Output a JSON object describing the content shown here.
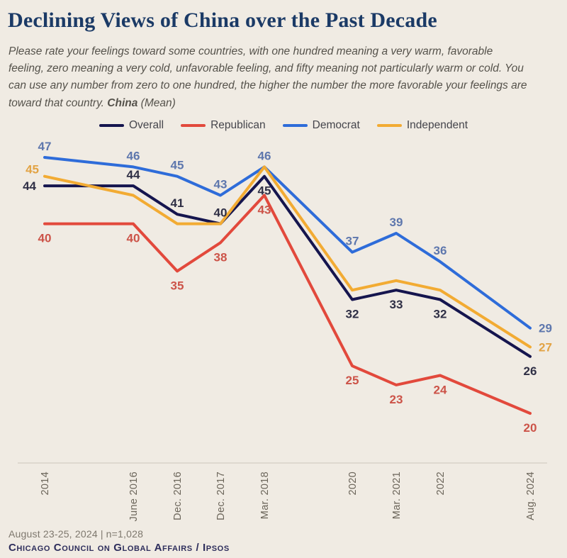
{
  "header": {
    "title": "Declining Views of China over the Past Decade",
    "subtitle_text": "Please rate your feelings toward some countries, with one hundred meaning a very warm, favorable feeling, zero meaning a very cold, unfavorable feeling, and fifty meaning not particularly warm or cold. You can use any number from zero to one hundred, the higher the number the more favorable your feelings are toward that country.",
    "subtitle_bold": "China",
    "subtitle_tail": "(Mean)"
  },
  "chart_data": {
    "type": "line",
    "title": "Declining Views of China over the Past Decade",
    "categories": [
      "2014",
      "June 2016",
      "Dec. 2016",
      "Dec. 2017",
      "Mar. 2018",
      "2020",
      "Mar. 2021",
      "2022",
      "Aug. 2024"
    ],
    "series": [
      {
        "name": "Overall",
        "color": "#15154e",
        "label_color": "#2f2f45",
        "values": [
          44,
          44,
          41,
          40,
          45,
          32,
          33,
          32,
          26
        ]
      },
      {
        "name": "Republican",
        "color": "#e2493c",
        "label_color": "#cc5348",
        "values": [
          40,
          40,
          35,
          38,
          43,
          25,
          23,
          24,
          20
        ]
      },
      {
        "name": "Democrat",
        "color": "#2e6cd9",
        "label_color": "#5e77ad",
        "values": [
          47,
          46,
          45,
          43,
          46,
          37,
          39,
          36,
          29
        ]
      },
      {
        "name": "Independent",
        "color": "#f2ab33",
        "label_color": "#e2a344",
        "values": [
          45,
          43,
          40,
          40,
          46,
          33,
          34,
          33,
          27
        ]
      }
    ],
    "ylim": [
      18,
      49
    ],
    "grid": false,
    "legend_position": "top-center",
    "x_tick_rotation": -90
  },
  "colors": {
    "background": "#f0ebe3",
    "title": "#1b3a66",
    "subtitle": "#55524b",
    "axis_line": "#ccc6bb",
    "tick_label": "#6b655a",
    "footer_meta": "#7e786e",
    "footer_source": "#2e2e5c"
  },
  "footer": {
    "dates": "August 23-25, 2024",
    "separator": "|",
    "sample": "n=1,028",
    "source": "Chicago Council on Global Affairs / Ipsos"
  }
}
